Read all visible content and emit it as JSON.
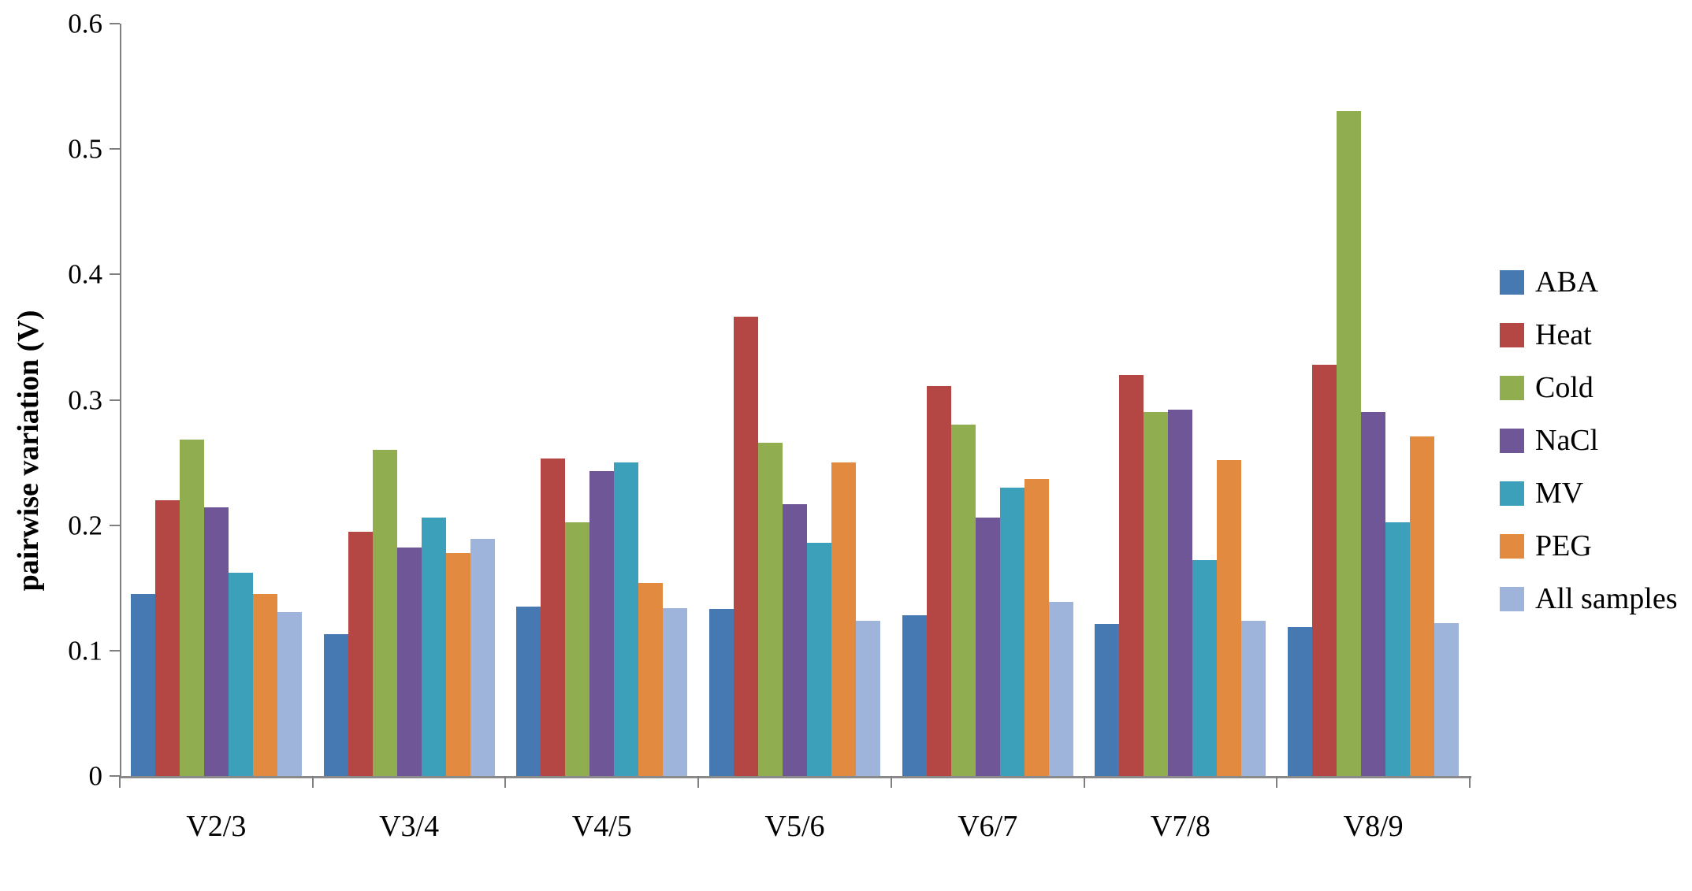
{
  "chart_data": {
    "type": "bar",
    "title": "",
    "xlabel": "",
    "ylabel": "pairwise variation (V)",
    "ylim": [
      0,
      0.6
    ],
    "ytick_labels": [
      "0",
      "0.1",
      "0.2",
      "0.3",
      "0.4",
      "0.5",
      "0.6"
    ],
    "ytick_values": [
      0,
      0.1,
      0.2,
      0.3,
      0.4,
      0.5,
      0.6
    ],
    "grid": false,
    "legend_position": "right",
    "axis_color": "#7F7F7F",
    "text_color": "#000000",
    "categories": [
      "V2/3",
      "V3/4",
      "V4/5",
      "V5/6",
      "V6/7",
      "V7/8",
      "V8/9"
    ],
    "series": [
      {
        "name": "ABA",
        "color": "#4678B2",
        "values": [
          0.145,
          0.113,
          0.135,
          0.133,
          0.128,
          0.121,
          0.119
        ]
      },
      {
        "name": "Heat",
        "color": "#B44744",
        "values": [
          0.22,
          0.195,
          0.253,
          0.366,
          0.311,
          0.32,
          0.328
        ]
      },
      {
        "name": "Cold",
        "color": "#90AD4F",
        "values": [
          0.268,
          0.26,
          0.202,
          0.266,
          0.28,
          0.29,
          0.53
        ]
      },
      {
        "name": "NaCl",
        "color": "#6F5696",
        "values": [
          0.214,
          0.182,
          0.243,
          0.217,
          0.206,
          0.292,
          0.29
        ]
      },
      {
        "name": "MV",
        "color": "#3DA0BA",
        "values": [
          0.162,
          0.206,
          0.25,
          0.186,
          0.23,
          0.172,
          0.202
        ]
      },
      {
        "name": "PEG",
        "color": "#E28A40",
        "values": [
          0.145,
          0.178,
          0.154,
          0.25,
          0.237,
          0.252,
          0.271
        ]
      },
      {
        "name": "All samples",
        "color": "#9FB4DA",
        "values": [
          0.131,
          0.189,
          0.134,
          0.124,
          0.139,
          0.124,
          0.122
        ]
      }
    ]
  }
}
